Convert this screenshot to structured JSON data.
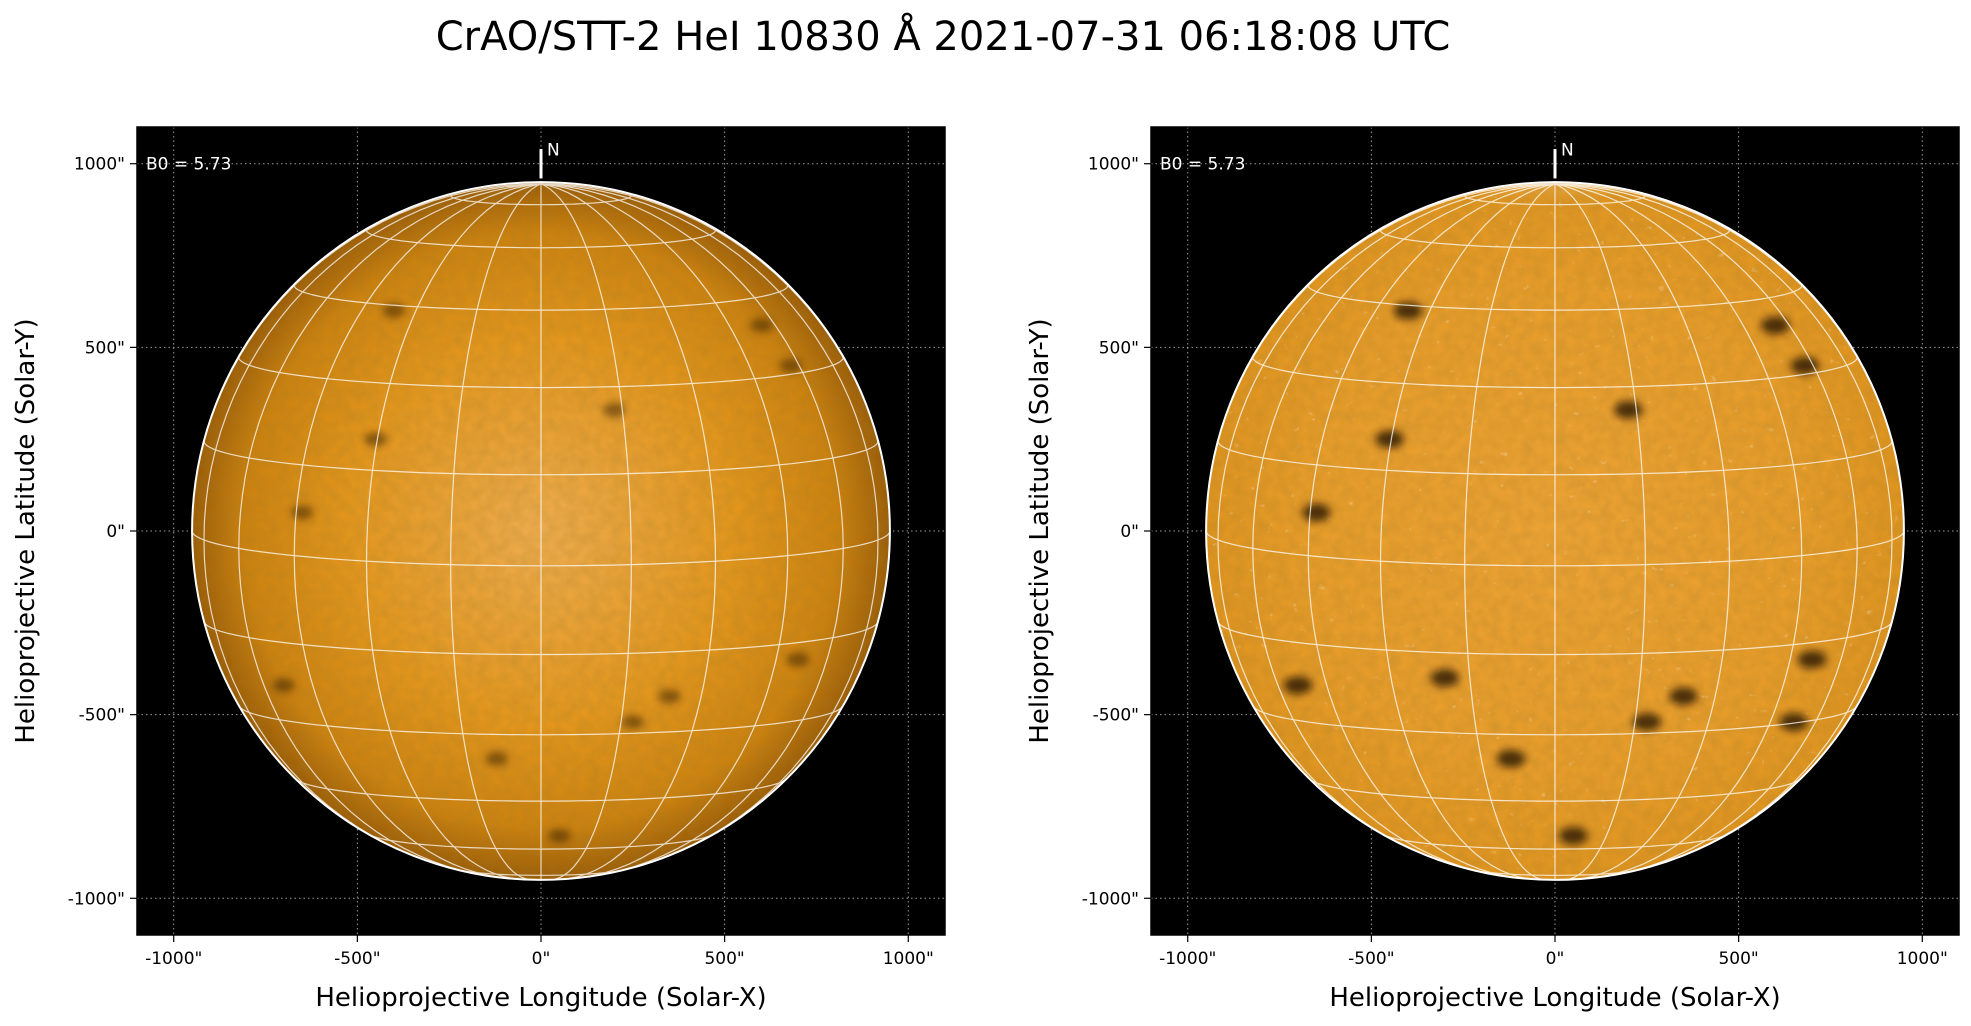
{
  "figure": {
    "title": "CrAO/STT-2 HeI 10830 Å 2021-07-31 06:18:08 UTC"
  },
  "colors": {
    "background": "#000000",
    "disk_center": "#f0a53c",
    "disk_mid": "#e39416",
    "disk_edge": "#b86e08",
    "grid_line": "#ffffff",
    "axis_grid": "#9a9a9a"
  },
  "panels": [
    {
      "b0_label": "B0 = 5.73",
      "north_label": "N",
      "xlabel": "Helioprojective Longitude (Solar-X)",
      "ylabel": "Helioprojective Latitude (Solar-Y)",
      "xticks": [
        "-1000\"",
        "-500\"",
        "0\"",
        "500\"",
        "1000\""
      ],
      "yticks": [
        "1000\"",
        "500\"",
        "0\"",
        "-500\"",
        "-1000\""
      ],
      "rendering": "normal",
      "dark_regions": [
        {
          "x": 200,
          "y": 330
        },
        {
          "x": 680,
          "y": 450
        },
        {
          "x": -450,
          "y": 250
        },
        {
          "x": 700,
          "y": -350
        },
        {
          "x": -700,
          "y": -420
        },
        {
          "x": 350,
          "y": -450
        },
        {
          "x": -120,
          "y": -620
        },
        {
          "x": 50,
          "y": -830
        },
        {
          "x": -400,
          "y": 600
        },
        {
          "x": 600,
          "y": 560
        },
        {
          "x": 250,
          "y": -520
        },
        {
          "x": -650,
          "y": 50
        }
      ]
    },
    {
      "b0_label": "B0 = 5.73",
      "north_label": "N",
      "xlabel": "Helioprojective Longitude (Solar-X)",
      "ylabel": "Helioprojective Latitude (Solar-Y)",
      "xticks": [
        "-1000\"",
        "-500\"",
        "0\"",
        "500\"",
        "1000\""
      ],
      "yticks": [
        "1000\"",
        "500\"",
        "0\"",
        "-500\"",
        "-1000\""
      ],
      "rendering": "enhanced",
      "dark_regions": [
        {
          "x": 200,
          "y": 330
        },
        {
          "x": 680,
          "y": 450
        },
        {
          "x": -450,
          "y": 250
        },
        {
          "x": 700,
          "y": -350
        },
        {
          "x": -700,
          "y": -420
        },
        {
          "x": 350,
          "y": -450
        },
        {
          "x": -120,
          "y": -620
        },
        {
          "x": 50,
          "y": -830
        },
        {
          "x": -400,
          "y": 600
        },
        {
          "x": 600,
          "y": 560
        },
        {
          "x": 250,
          "y": -520
        },
        {
          "x": -650,
          "y": 50
        },
        {
          "x": 650,
          "y": -520
        },
        {
          "x": -300,
          "y": -400
        }
      ]
    }
  ]
}
